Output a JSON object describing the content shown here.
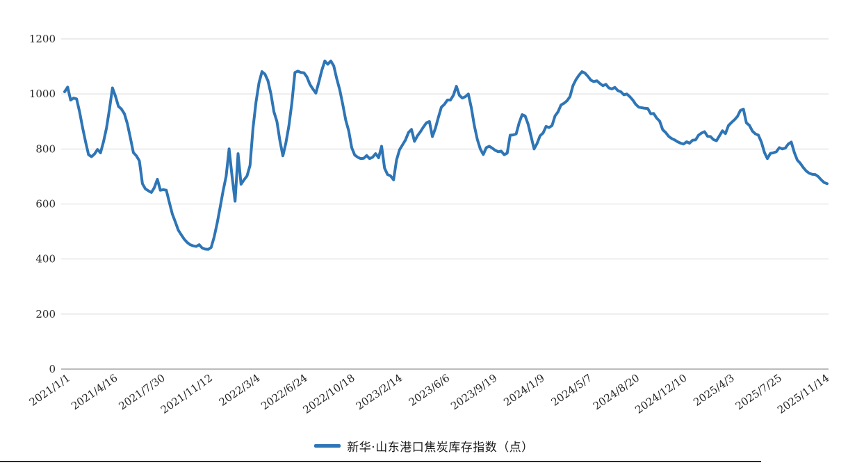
{
  "chart_data": {
    "type": "line",
    "series": [
      {
        "name": "新华·山东港口焦炭库存指数（点）",
        "color": "#2E75B6",
        "values": [
          1008,
          1025,
          978,
          985,
          982,
          935,
          878,
          826,
          779,
          772,
          782,
          798,
          786,
          826,
          876,
          945,
          1022,
          992,
          955,
          945,
          928,
          891,
          840,
          787,
          775,
          757,
          674,
          655,
          648,
          642,
          660,
          690,
          650,
          652,
          650,
          606,
          564,
          535,
          505,
          488,
          472,
          460,
          452,
          448,
          446,
          452,
          440,
          436,
          435,
          442,
          480,
          530,
          588,
          648,
          700,
          800,
          700,
          610,
          783,
          672,
          688,
          702,
          740,
          876,
          970,
          1040,
          1081,
          1072,
          1048,
          1000,
          935,
          900,
          830,
          775,
          822,
          884,
          967,
          1078,
          1083,
          1078,
          1077,
          1062,
          1035,
          1018,
          1003,
          1043,
          1086,
          1120,
          1108,
          1120,
          1102,
          1055,
          1015,
          962,
          905,
          866,
          805,
          778,
          770,
          765,
          766,
          776,
          765,
          770,
          783,
          768,
          810,
          730,
          707,
          702,
          688,
          760,
          797,
          815,
          833,
          860,
          871,
          828,
          848,
          863,
          880,
          895,
          900,
          845,
          875,
          915,
          952,
          962,
          978,
          978,
          995,
          1028,
          995,
          985,
          990,
          1000,
          950,
          885,
          835,
          800,
          780,
          805,
          810,
          803,
          795,
          790,
          792,
          779,
          785,
          850,
          851,
          855,
          895,
          925,
          920,
          890,
          845,
          800,
          820,
          848,
          858,
          882,
          878,
          885,
          920,
          935,
          960,
          966,
          975,
          990,
          1030,
          1052,
          1068,
          1081,
          1076,
          1064,
          1050,
          1045,
          1048,
          1038,
          1030,
          1035,
          1022,
          1018,
          1024,
          1012,
          1008,
          997,
          1000,
          990,
          978,
          962,
          952,
          950,
          948,
          947,
          928,
          929,
          912,
          901,
          870,
          860,
          846,
          838,
          833,
          826,
          821,
          818,
          826,
          821,
          832,
          833,
          850,
          858,
          863,
          846,
          845,
          834,
          830,
          848,
          866,
          856,
          885,
          896,
          906,
          918,
          940,
          945,
          895,
          886,
          865,
          855,
          850,
          825,
          788,
          765,
          784,
          786,
          790,
          805,
          800,
          803,
          818,
          825,
          788,
          760,
          748,
          733,
          720,
          712,
          708,
          707,
          700,
          688,
          678,
          674
        ]
      }
    ],
    "x_tick_labels": [
      "2021/1/1",
      "2021/4/16",
      "2021/7/30",
      "2021/11/12",
      "2022/3/4",
      "2022/6/24",
      "2022/10/18",
      "2023/2/14",
      "2023/6/6",
      "2023/9/19",
      "2024/1/9",
      "2024/5/7",
      "2024/8/20",
      "2024/12/10",
      "2025/4/3",
      "2025/7/25",
      "2025/11/14"
    ],
    "y_ticks": [
      0,
      200,
      400,
      600,
      800,
      1000,
      1200
    ],
    "ylim": [
      0,
      1200
    ],
    "grid": true,
    "legend_position": "bottom-center"
  },
  "colors": {
    "line": "#2E75B6",
    "grid": "#D9D9D9",
    "axis": "#A6A6A6",
    "text": "#262626",
    "background": "#FFFFFF"
  }
}
